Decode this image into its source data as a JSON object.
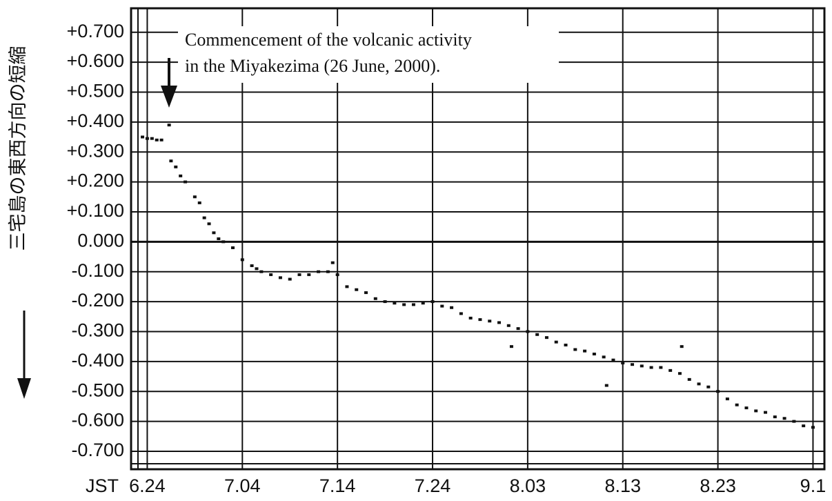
{
  "chart_data": {
    "type": "scatter",
    "y_label": "三宅島の東西方向の短縮",
    "x_label": "JST",
    "annotation": [
      "Commencement of the volcanic activity",
      "in the Miyakezima (26 June, 2000)."
    ],
    "color": "#111111",
    "grid": true,
    "xlim": [
      -1.7,
      71.2
    ],
    "ylim": [
      -0.76,
      0.78
    ],
    "xticks": [
      {
        "value": 0,
        "label": "6.24"
      },
      {
        "value": 10,
        "label": "7.04"
      },
      {
        "value": 20,
        "label": "7.14"
      },
      {
        "value": 30,
        "label": "7.24"
      },
      {
        "value": 40,
        "label": "8.03"
      },
      {
        "value": 50,
        "label": "8.13"
      },
      {
        "value": 60,
        "label": "8.23"
      },
      {
        "value": 70,
        "label": "9.1"
      }
    ],
    "yticks": [
      {
        "value": 0.7,
        "label": "+0.700"
      },
      {
        "value": 0.6,
        "label": "+0.600"
      },
      {
        "value": 0.5,
        "label": "+0.500"
      },
      {
        "value": 0.4,
        "label": "+0.400"
      },
      {
        "value": 0.3,
        "label": "+0.300"
      },
      {
        "value": 0.2,
        "label": "+0.200"
      },
      {
        "value": 0.1,
        "label": "+0.100"
      },
      {
        "value": 0,
        "label": "0.000"
      },
      {
        "value": -0.1,
        "label": "-0.100"
      },
      {
        "value": -0.2,
        "label": "-0.200"
      },
      {
        "value": -0.3,
        "label": "-0.300"
      },
      {
        "value": -0.4,
        "label": "-0.400"
      },
      {
        "value": -0.5,
        "label": "-0.500"
      },
      {
        "value": -0.6,
        "label": "-0.600"
      },
      {
        "value": -0.7,
        "label": "-0.700"
      }
    ],
    "x": [
      -0.5,
      0,
      0.5,
      1,
      1.5,
      2.3,
      2.5,
      3,
      3.5,
      4,
      5,
      5.5,
      6,
      6.5,
      7,
      7.5,
      8,
      9,
      10,
      11,
      11.5,
      12,
      13,
      14,
      15,
      16,
      17,
      18,
      19,
      19.5,
      20,
      21,
      22,
      23,
      24,
      25,
      26,
      27,
      28,
      29,
      30,
      31,
      32,
      33,
      34,
      35,
      36,
      37,
      38,
      38.3,
      39,
      40,
      41,
      42,
      43,
      44,
      45,
      46,
      47,
      48,
      48.3,
      49,
      50,
      51,
      52,
      53,
      54,
      55,
      56,
      56.2,
      57,
      58,
      59,
      60,
      61,
      62,
      63,
      64,
      65,
      66,
      67,
      68,
      69,
      70
    ],
    "values": [
      0.35,
      0.345,
      0.345,
      0.34,
      0.34,
      0.39,
      0.27,
      0.25,
      0.22,
      0.2,
      0.15,
      0.13,
      0.08,
      0.06,
      0.03,
      0.01,
      0.0,
      -0.02,
      -0.06,
      -0.08,
      -0.09,
      -0.1,
      -0.11,
      -0.12,
      -0.125,
      -0.11,
      -0.11,
      -0.1,
      -0.1,
      -0.07,
      -0.11,
      -0.15,
      -0.16,
      -0.17,
      -0.19,
      -0.2,
      -0.205,
      -0.21,
      -0.21,
      -0.205,
      -0.2,
      -0.215,
      -0.22,
      -0.24,
      -0.255,
      -0.26,
      -0.265,
      -0.27,
      -0.28,
      -0.35,
      -0.29,
      -0.3,
      -0.31,
      -0.32,
      -0.335,
      -0.345,
      -0.36,
      -0.365,
      -0.375,
      -0.385,
      -0.48,
      -0.395,
      -0.405,
      -0.41,
      -0.415,
      -0.42,
      -0.42,
      -0.43,
      -0.44,
      -0.35,
      -0.46,
      -0.475,
      -0.485,
      -0.5,
      -0.525,
      -0.545,
      -0.555,
      -0.565,
      -0.57,
      -0.585,
      -0.59,
      -0.6,
      -0.615,
      -0.62
    ]
  }
}
